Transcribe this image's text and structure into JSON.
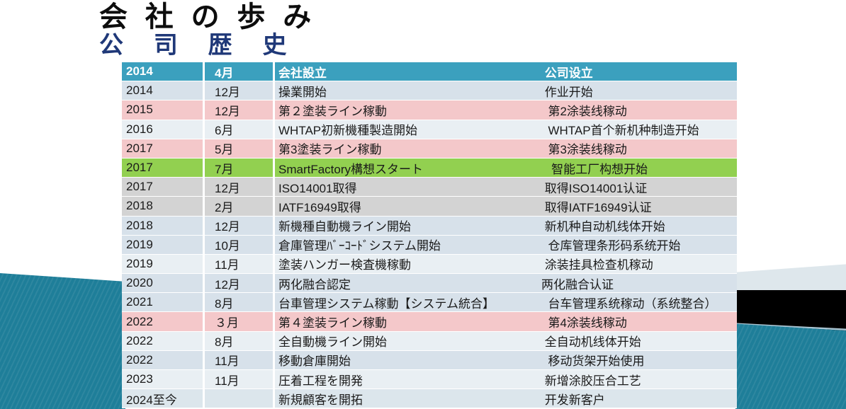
{
  "title": {
    "jp": "会社の歩み",
    "cn": "公司歴史"
  },
  "colors": {
    "header_bg": "#3BA0BE",
    "title_jp": "#0D0D0D",
    "title_cn": "#1F3878",
    "teal_decor": "#1E7E99",
    "black_decor": "#000000",
    "light_band": "#DEE7EC"
  },
  "table": {
    "columns": [
      "year",
      "month",
      "event_japanese",
      "event_chinese"
    ],
    "rows": [
      {
        "header": true,
        "year": "2014",
        "month": "4月",
        "jp": "会社設立",
        "cn": " 公司设立",
        "bg": "#3BA0BE"
      },
      {
        "header": false,
        "year": "2014",
        "month": "12月",
        "jp": "操業開始",
        "cn": " 作业开始",
        "bg": "#D7E1EA"
      },
      {
        "header": false,
        "year": "2015",
        "month": "12月",
        "jp": "第２塗装ライン稼動",
        "cn": "  第2涂装线稼动",
        "bg": "#F4C8CA"
      },
      {
        "header": false,
        "year": "2016",
        "month": "6月",
        "jp": "WHTAP初新機種製造開始",
        "cn": "  WHTAP首个新机种制造开始",
        "bg": "#E9EFF3"
      },
      {
        "header": false,
        "year": "2017",
        "month": "5月",
        "jp": "第3塗装ライン稼動",
        "cn": "  第3涂装线稼动",
        "bg": "#F4C8CA"
      },
      {
        "header": false,
        "year": "2017",
        "month": "7月",
        "jp": "SmartFactory構想スタート",
        "cn": "   智能工厂构想开始",
        "bg": "#92D050"
      },
      {
        "header": false,
        "year": "2017",
        "month": "12月",
        "jp": "ISO14001取得",
        "cn": " 取得ISO14001认证",
        "bg": "#D3D3D3"
      },
      {
        "header": false,
        "year": "2018",
        "month": "2月",
        "jp": "IATF16949取得",
        "cn": " 取得IATF16949认证",
        "bg": "#D3D3D3"
      },
      {
        "header": false,
        "year": "2018",
        "month": "12月",
        "jp": "新機種自動機ライン開始",
        "cn": " 新机种自动机线体开始",
        "bg": "#D7E1EA"
      },
      {
        "header": false,
        "year": "2019",
        "month": "10月",
        "jp": "倉庫管理ﾊﾞｰｺｰﾄﾞシステム開始",
        "cn": "  仓库管理条形码系统开始",
        "bg": "#D7E1EA"
      },
      {
        "header": false,
        "year": "2019",
        "month": "11月",
        "jp": "塗装ハンガー検査機稼動",
        "cn": " 涂装挂具检查机稼动",
        "bg": "#E9EFF3"
      },
      {
        "header": false,
        "year": "2020",
        "month": "12月",
        "jp": "两化融合認定",
        "cn": "两化融合认证",
        "bg": "#D7E1EA"
      },
      {
        "header": false,
        "year": "2021",
        "month": "8月",
        "jp": "台車管理システム稼動【システム統合】",
        "cn": "  台车管理系统稼动（系统整合）",
        "bg": "#D7E1EA"
      },
      {
        "header": false,
        "year": "2022",
        "month": "３月",
        "jp": "第４塗装ライン稼動",
        "cn": "  第4涂装线稼动",
        "bg": "#F4C8CA"
      },
      {
        "header": false,
        "year": "2022",
        "month": "8月",
        "jp": "全自動機ライン開始",
        "cn": " 全自动机线体开始",
        "bg": "#E9EFF3"
      },
      {
        "header": false,
        "year": "2022",
        "month": "11月",
        "jp": "移動倉庫開始",
        "cn": "  移动货架开始使用",
        "bg": "#D7E1EA"
      },
      {
        "header": false,
        "year": "2023",
        "month": "11月",
        "jp": "圧着工程を開発",
        "cn": " 新增涂胶压合工艺",
        "bg": "#E9EFF3"
      },
      {
        "header": false,
        "year": "2024至今",
        "month": "",
        "jp": "新規顧客を開拓",
        "cn": " 开发新客户",
        "bg": "#DCE6EC"
      }
    ]
  }
}
